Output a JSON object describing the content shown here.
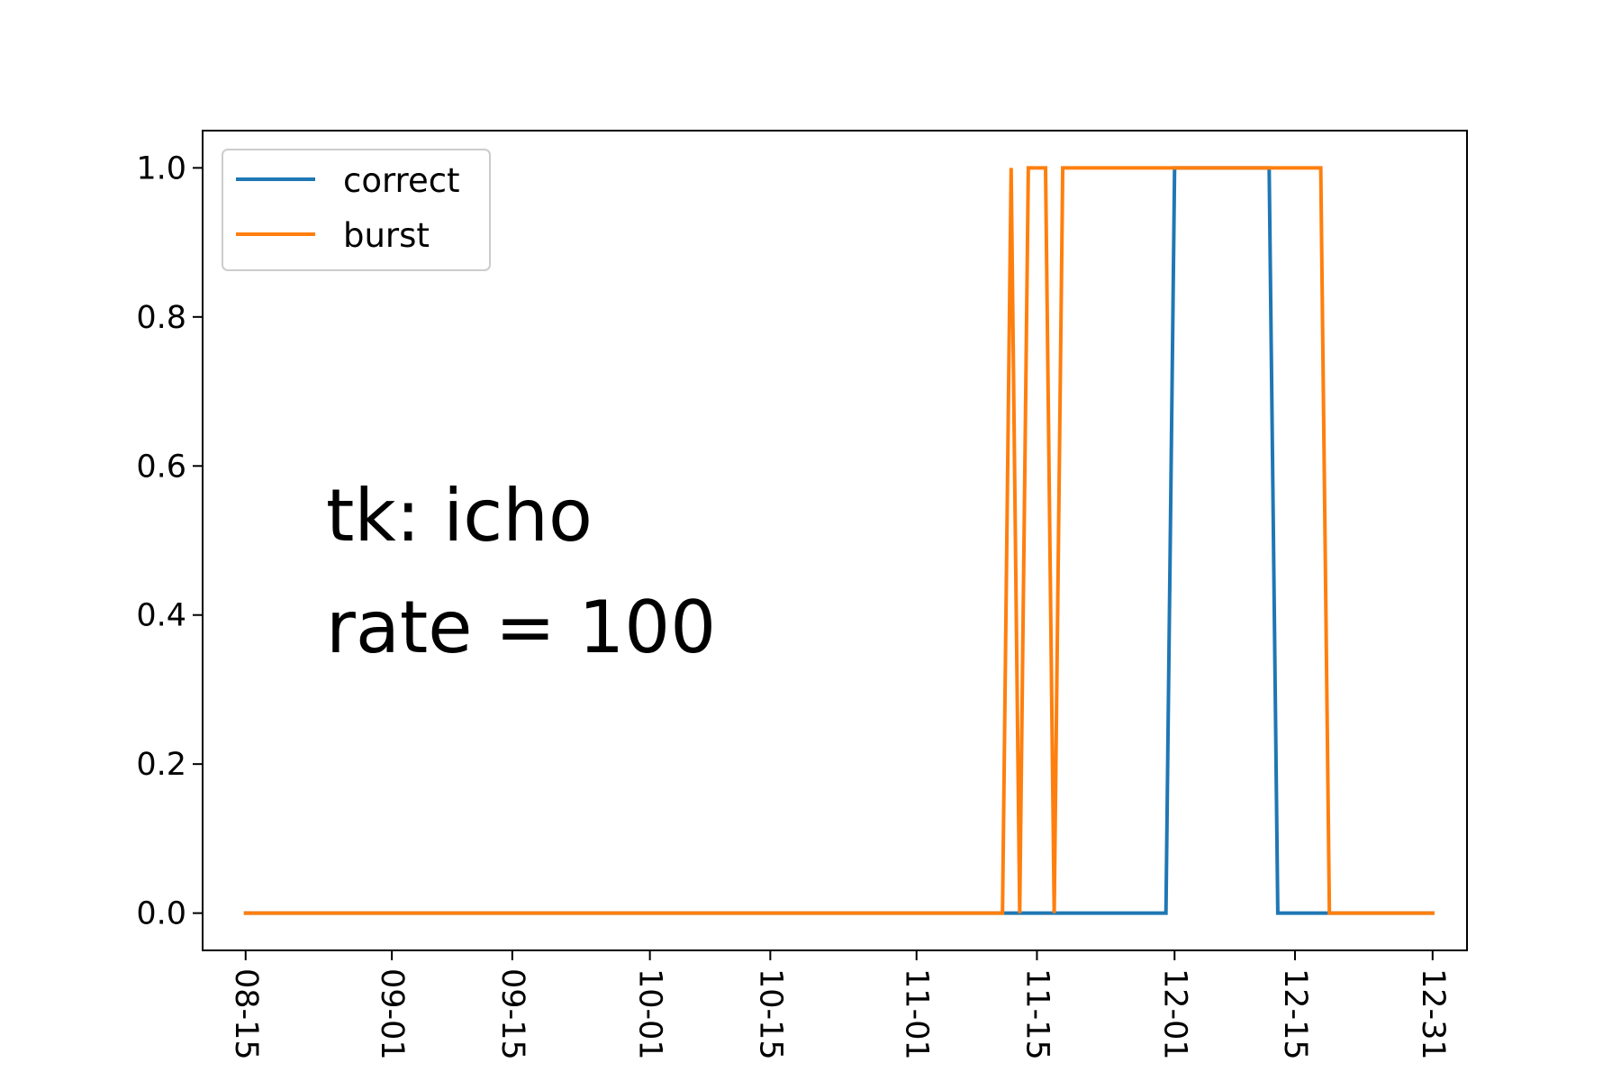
{
  "chart_data": {
    "type": "line",
    "title": "",
    "xlabel": "",
    "ylabel": "",
    "xlim": [
      "2023-08-10",
      "2024-01-04"
    ],
    "ylim": [
      -0.05,
      1.05
    ],
    "grid": false,
    "legend_position": "top-left",
    "x_ticks": [
      "08-15",
      "09-01",
      "09-15",
      "10-01",
      "10-15",
      "11-01",
      "11-15",
      "12-01",
      "12-15",
      "12-31"
    ],
    "x_tick_dates": [
      "2023-08-15",
      "2023-09-01",
      "2023-09-15",
      "2023-10-01",
      "2023-10-15",
      "2023-11-01",
      "2023-11-15",
      "2023-12-01",
      "2023-12-15",
      "2023-12-31"
    ],
    "y_ticks": [
      "0.0",
      "0.2",
      "0.4",
      "0.6",
      "0.8",
      "1.0"
    ],
    "y_tick_values": [
      0.0,
      0.2,
      0.4,
      0.6,
      0.8,
      1.0
    ],
    "series": [
      {
        "name": "correct",
        "color": "#1f77b4",
        "points": [
          [
            "2023-08-15",
            0
          ],
          [
            "2023-11-30",
            0
          ],
          [
            "2023-12-01",
            1
          ],
          [
            "2023-12-12",
            1
          ],
          [
            "2023-12-13",
            0
          ],
          [
            "2023-12-31",
            0
          ]
        ]
      },
      {
        "name": "burst",
        "color": "#ff7f0e",
        "points": [
          [
            "2023-08-15",
            0
          ],
          [
            "2023-11-11",
            0
          ],
          [
            "2023-11-12",
            1
          ],
          [
            "2023-11-13",
            0
          ],
          [
            "2023-11-14",
            1
          ],
          [
            "2023-11-16",
            1
          ],
          [
            "2023-11-17",
            0
          ],
          [
            "2023-11-18",
            1
          ],
          [
            "2023-12-18",
            1
          ],
          [
            "2023-12-19",
            0
          ],
          [
            "2023-12-31",
            0
          ]
        ]
      }
    ],
    "annotations": [
      "tk: icho",
      "rate = 100"
    ]
  }
}
